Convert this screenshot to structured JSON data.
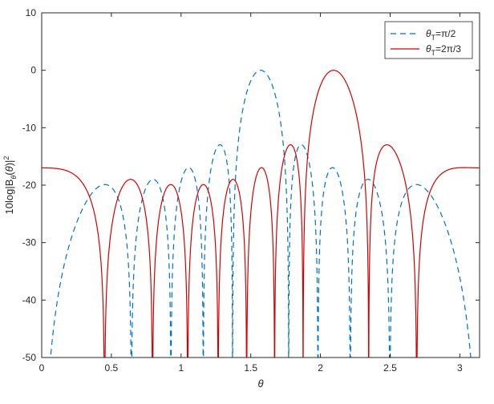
{
  "chart_data": {
    "type": "line",
    "title": "",
    "xlabel": "θ",
    "ylabel": "10log|B_θ(θ)|²",
    "xlim": [
      0,
      3.1416
    ],
    "ylim": [
      -50,
      10
    ],
    "x_ticks": [
      0,
      0.5,
      1,
      1.5,
      2,
      2.5,
      3
    ],
    "y_ticks": [
      -50,
      -40,
      -30,
      -20,
      -10,
      0,
      10
    ],
    "grid": false,
    "legend_position": "top-right",
    "array_elements": 10,
    "series": [
      {
        "name": "θT=π/2",
        "name_parts": [
          "θ",
          "T",
          "=π/2"
        ],
        "steer": 1.5708,
        "color": "#0072BD",
        "style": "dashed"
      },
      {
        "name": "θT=2π/3",
        "name_parts": [
          "θ",
          "T",
          "=2π/3"
        ],
        "steer": 2.0944,
        "color": "#D40000",
        "style": "solid"
      }
    ]
  }
}
